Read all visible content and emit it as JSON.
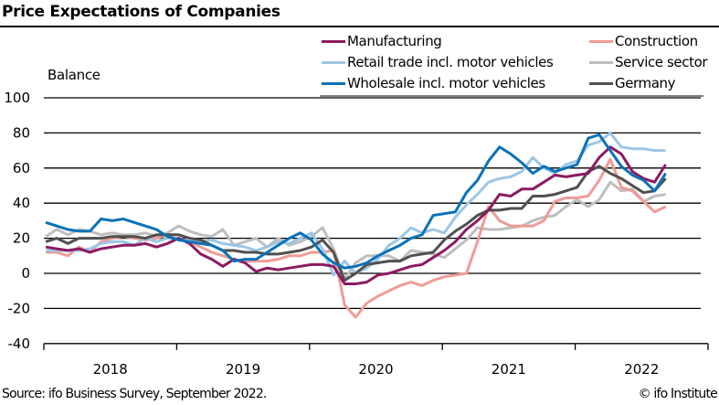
{
  "title": "Price Expectations of Companies",
  "source": "Source: ifo Business Survey, September 2022.",
  "copyright": "© ifo Institute",
  "chart_data": {
    "type": "line",
    "title": "Price Expectations of Companies",
    "xlabel": "",
    "ylabel": "Balance",
    "ylim": [
      -40,
      100
    ],
    "yticks": [
      -40,
      -20,
      0,
      20,
      40,
      60,
      80,
      100
    ],
    "ytick_labels": [
      "-40",
      "-20",
      "0",
      "20",
      "40",
      "60",
      "80",
      "100"
    ],
    "x_start": "2018-01",
    "x_end": "2022-09",
    "x_frequency": "monthly",
    "xtick_labels": [
      "2018",
      "2019",
      "2020",
      "2021",
      "2022"
    ],
    "grid": "horizontal",
    "legend_position": "top-right",
    "series": [
      {
        "name": "Manufacturing",
        "color": "#8c1a60",
        "values": [
          15,
          14,
          13,
          14,
          12,
          14,
          15,
          16,
          16,
          17,
          15,
          17,
          20,
          17,
          11,
          8,
          4,
          8,
          6,
          1,
          3,
          2,
          3,
          4,
          5,
          5,
          4,
          -6,
          -6,
          -5,
          -1,
          0,
          2,
          4,
          5,
          9,
          13,
          18,
          25,
          30,
          36,
          45,
          44,
          48,
          48,
          52,
          56,
          55,
          56,
          57,
          66,
          72,
          68,
          58,
          54,
          52,
          62
        ]
      },
      {
        "name": "Retail trade incl. motor vehicles",
        "color": "#9dc6e6",
        "values": [
          13,
          13,
          13,
          13,
          14,
          17,
          18,
          18,
          16,
          20,
          18,
          20,
          20,
          18,
          18,
          19,
          17,
          16,
          15,
          13,
          15,
          18,
          17,
          20,
          23,
          14,
          -1,
          7,
          0,
          3,
          8,
          16,
          20,
          26,
          23,
          25,
          23,
          32,
          39,
          45,
          52,
          54,
          55,
          58,
          66,
          60,
          57,
          62,
          64,
          73,
          75,
          80,
          72,
          71,
          71,
          70,
          70
        ]
      },
      {
        "name": "Wholesale incl. motor vehicles",
        "color": "#0a72b8",
        "values": [
          29,
          27,
          25,
          24,
          24,
          31,
          30,
          31,
          29,
          27,
          25,
          21,
          19,
          18,
          17,
          16,
          13,
          7,
          8,
          8,
          12,
          16,
          20,
          23,
          19,
          11,
          6,
          3,
          4,
          6,
          10,
          13,
          16,
          20,
          22,
          33,
          34,
          35,
          46,
          53,
          64,
          72,
          68,
          63,
          57,
          61,
          58,
          60,
          62,
          77,
          79,
          70,
          61,
          56,
          53,
          47,
          57
        ]
      },
      {
        "name": "Construction",
        "color": "#f09b97",
        "values": [
          12,
          12,
          10,
          15,
          12,
          18,
          20,
          21,
          20,
          19,
          20,
          22,
          19,
          18,
          15,
          12,
          10,
          8,
          7,
          7,
          7,
          8,
          10,
          10,
          12,
          12,
          13,
          -18,
          -25,
          -17,
          -13,
          -10,
          -7,
          -5,
          -7,
          -4,
          -2,
          -1,
          0,
          18,
          38,
          30,
          27,
          27,
          27,
          30,
          41,
          43,
          43,
          44,
          53,
          65,
          49,
          47,
          41,
          35,
          38
        ]
      },
      {
        "name": "Service sector",
        "color": "#bebebe",
        "values": [
          21,
          25,
          22,
          25,
          24,
          22,
          23,
          22,
          22,
          23,
          21,
          23,
          27,
          24,
          22,
          21,
          25,
          16,
          18,
          20,
          15,
          20,
          16,
          18,
          21,
          26,
          14,
          -3,
          6,
          10,
          10,
          10,
          7,
          13,
          12,
          11,
          9,
          14,
          19,
          26,
          25,
          25,
          26,
          27,
          30,
          32,
          33,
          38,
          42,
          38,
          42,
          52,
          47,
          48,
          41,
          44,
          45
        ]
      },
      {
        "name": "Germany",
        "color": "#505050",
        "values": [
          18,
          20,
          17,
          20,
          20,
          20,
          21,
          21,
          21,
          20,
          22,
          22,
          22,
          20,
          19,
          16,
          13,
          13,
          12,
          12,
          11,
          11,
          12,
          13,
          15,
          19,
          12,
          -4,
          0,
          5,
          6,
          7,
          7,
          10,
          11,
          12,
          19,
          24,
          28,
          33,
          36,
          36,
          37,
          37,
          44,
          44,
          45,
          47,
          49,
          58,
          61,
          57,
          54,
          50,
          46,
          47,
          54
        ]
      }
    ]
  }
}
